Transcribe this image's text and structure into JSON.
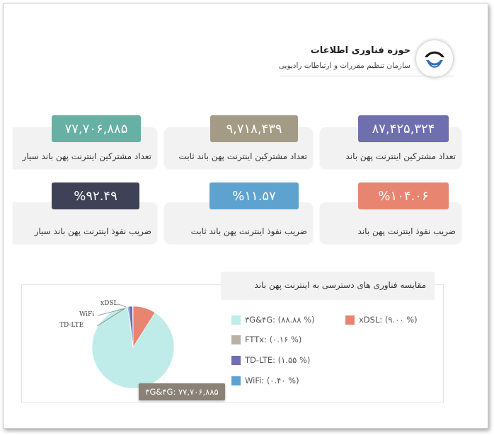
{
  "header": {
    "title": "حوزه فناوری اطلاعات",
    "subtitle": "سازمان تنظیم مقررات و ارتباطات رادیویی"
  },
  "stats": [
    {
      "value": "۸۷,۴۲۵,۳۲۴",
      "label": "تعداد مشترکین اینترنت پهن باند",
      "color": "#6f6fb0"
    },
    {
      "value": "۹,۷۱۸,۴۳۹",
      "label": "تعداد مشترکین اینترنت پهن باند ثابت",
      "color": "#a49b87"
    },
    {
      "value": "۷۷,۷۰۶,۸۸۵",
      "label": "تعداد مشترکین اینترنت پهن باند سیار",
      "color": "#66b0a4"
    },
    {
      "value": "%۱۰۴.۰۶",
      "label": "ضریب نفوذ اینترنت پهن باند",
      "color": "#e88570"
    },
    {
      "value": "%۱۱.۵۷",
      "label": "ضریب نفوذ اینترنت پهن باند ثابت",
      "color": "#5ea3cf"
    },
    {
      "value": "%۹۲.۴۹",
      "label": "ضریب نفوذ اینترنت پهن باند سیار",
      "color": "#3f4257"
    }
  ],
  "chart_data": {
    "type": "pie",
    "title": "مقایسه  فناوری های دسترسی  به اینترنت پهن باند",
    "slices": [
      {
        "name": "۳G&۴G",
        "legend": "۳G&۴G: (۸۸.۸۸ %)",
        "value": 88.88,
        "color": "#bfece8"
      },
      {
        "name": "xDSL",
        "legend": "xDSL: (۹.۰۰ %)",
        "value": 9.0,
        "color": "#e88570"
      },
      {
        "name": "FTTx",
        "legend": "FTTx: (۰.۱۶ %)",
        "value": 0.16,
        "color": "#b8b2a4"
      },
      {
        "name": "TD-LTE",
        "legend": "TD-LTE: (۱.۵۵ %)",
        "value": 1.55,
        "color": "#6f6fb0"
      },
      {
        "name": "WiFi",
        "legend": "WiFi: (۰.۴۰ %)",
        "value": 0.4,
        "color": "#5ea3cf"
      }
    ],
    "callouts": [
      "xDSL",
      "WiFi",
      "TD-LTE"
    ],
    "tooltip": "۳G&۴G: ۷۷,۷۰۶,۸۸۵"
  }
}
